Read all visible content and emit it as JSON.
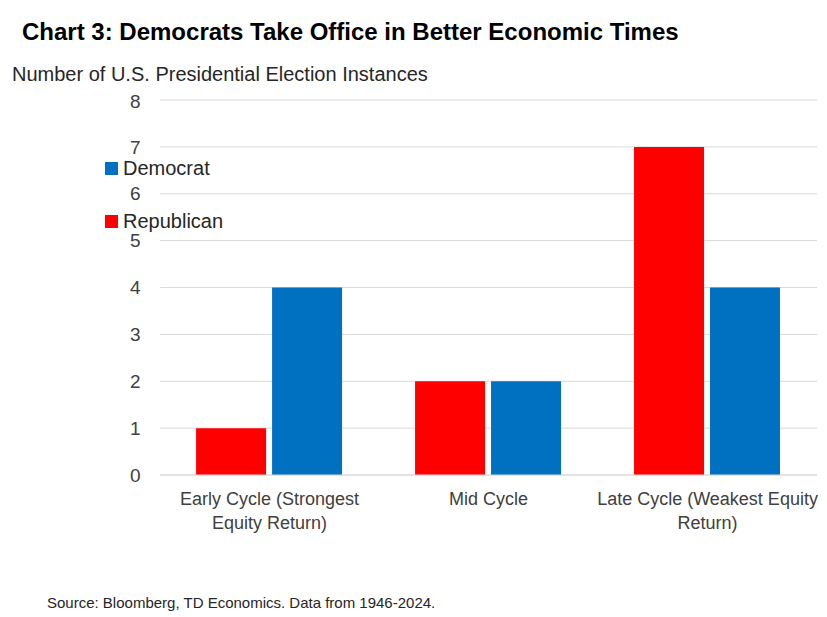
{
  "chart_data": {
    "type": "bar",
    "title": "Chart 3: Democrats Take Office in Better Economic Times",
    "subtitle": "Number of U.S. Presidential Election Instances",
    "source": "Source: Bloomberg, TD Economics. Data from 1946-2024.",
    "categories": [
      "Early Cycle (Strongest Equity Return)",
      "Mid Cycle",
      "Late Cycle (Weakest Equity Return)"
    ],
    "series": [
      {
        "name": "Republican",
        "color": "#ff0000",
        "values": [
          1,
          2,
          7
        ]
      },
      {
        "name": "Democrat",
        "color": "#0070c0",
        "values": [
          4,
          2,
          4
        ]
      }
    ],
    "ylim": [
      0,
      8
    ],
    "yticks": [
      0,
      1,
      2,
      3,
      4,
      5,
      6,
      7,
      8
    ],
    "grid": true,
    "legend": "top-left"
  }
}
